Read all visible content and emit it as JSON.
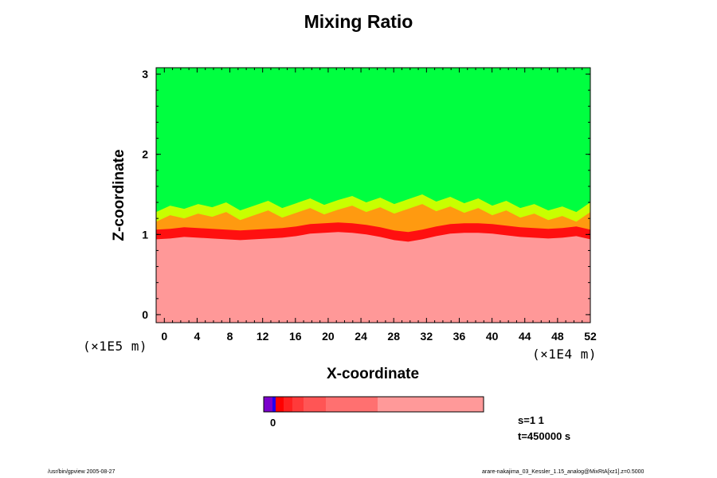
{
  "chart_data": {
    "type": "heatmap",
    "title": "Mixing Ratio",
    "xlabel": "X-coordinate",
    "ylabel": "Z-coordinate",
    "x_scale_note": "(×1E4 m)",
    "y_scale_note": "(×1E5 m)",
    "xlim": [
      -1,
      52
    ],
    "ylim": [
      -0.1,
      3.08
    ],
    "x_ticks": [
      0,
      4,
      8,
      12,
      16,
      20,
      24,
      28,
      32,
      36,
      40,
      44,
      48,
      52
    ],
    "y_ticks": [
      0,
      1,
      2,
      3
    ],
    "interface_height": [
      1.0,
      1.01,
      1.03,
      1.02,
      1.01,
      1.0,
      0.99,
      1.0,
      1.01,
      1.02,
      1.04,
      1.07,
      1.08,
      1.09,
      1.08,
      1.06,
      1.03,
      0.99,
      0.97,
      1.0,
      1.04,
      1.07,
      1.08,
      1.08,
      1.07,
      1.05,
      1.03,
      1.02,
      1.01,
      1.02,
      1.04,
      1.0
    ],
    "mixing_layer_top": [
      1.28,
      1.36,
      1.32,
      1.38,
      1.34,
      1.4,
      1.3,
      1.36,
      1.42,
      1.33,
      1.39,
      1.45,
      1.37,
      1.43,
      1.48,
      1.4,
      1.46,
      1.38,
      1.44,
      1.5,
      1.41,
      1.47,
      1.39,
      1.45,
      1.36,
      1.42,
      1.33,
      1.38,
      1.3,
      1.35,
      1.28,
      1.4
    ],
    "upper_region": "green",
    "lower_region": "pink",
    "colorbar": {
      "zero_label": "0",
      "colors": [
        "#7b00cc",
        "#2200ee",
        "#ff0000",
        "#ff2020",
        "#ff3a3a",
        "#ff5555",
        "#ff7070",
        "#ff9999"
      ]
    }
  },
  "annotations": {
    "s_label": "s=1 1",
    "t_label": "t=450000 s"
  },
  "footer": {
    "left": "/usr/bin/gpview 2005-08-27",
    "right": "arare-nakajima_03_Kessler_1.15_analog@MixRtA[xz1].z=0.5000"
  },
  "colors": {
    "green": "#00ff40",
    "yellow": "#c8ff00",
    "orange": "#ff9a10",
    "red": "#ff1010",
    "pink": "#ff9898"
  }
}
